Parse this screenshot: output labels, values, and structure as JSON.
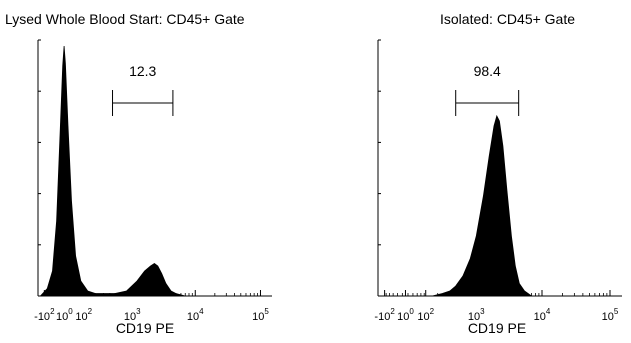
{
  "chart_data": [
    {
      "type": "area",
      "title": "Lysed Whole Blood Start: CD45+ Gate",
      "xlabel": "CD19 PE",
      "ylabel": "",
      "x_scale": "biexponential",
      "x_ticks": [
        "-10^2",
        "10^0",
        "10^2",
        "10^3",
        "10^4",
        "10^5"
      ],
      "y_max": 100,
      "gate": {
        "label": "12.3",
        "x_from": 450,
        "x_to": 4500
      },
      "series": [
        {
          "x": [
            -130,
            -80,
            -50,
            -30,
            -15,
            -5,
            0,
            5,
            15,
            30,
            50,
            80,
            130,
            200,
            300,
            500,
            800,
            1200,
            1600,
            2000,
            2300,
            2600,
            3000,
            3500,
            4200,
            5000,
            7000
          ],
          "y": [
            0,
            3,
            10,
            30,
            65,
            92,
            100,
            93,
            68,
            38,
            16,
            6,
            2,
            1,
            1,
            1,
            2,
            6,
            10,
            12,
            13,
            12,
            9,
            5,
            2,
            1,
            0
          ]
        }
      ]
    },
    {
      "type": "area",
      "title": "Isolated: CD45+ Gate",
      "xlabel": "CD19 PE",
      "ylabel": "",
      "x_scale": "biexponential",
      "x_ticks": [
        "-10^2",
        "10^0",
        "10^2",
        "10^3",
        "10^4",
        "10^5"
      ],
      "y_max": 100,
      "gate": {
        "label": "98.4",
        "x_from": 450,
        "x_to": 4500
      },
      "series": [
        {
          "x": [
            150,
            250,
            350,
            450,
            600,
            800,
            1000,
            1300,
            1600,
            1900,
            2100,
            2300,
            2600,
            3000,
            3500,
            4000,
            4600,
            5500,
            7000
          ],
          "y": [
            0,
            1,
            2,
            4,
            8,
            15,
            24,
            40,
            56,
            68,
            72,
            70,
            60,
            42,
            24,
            12,
            5,
            2,
            0
          ]
        }
      ]
    }
  ]
}
